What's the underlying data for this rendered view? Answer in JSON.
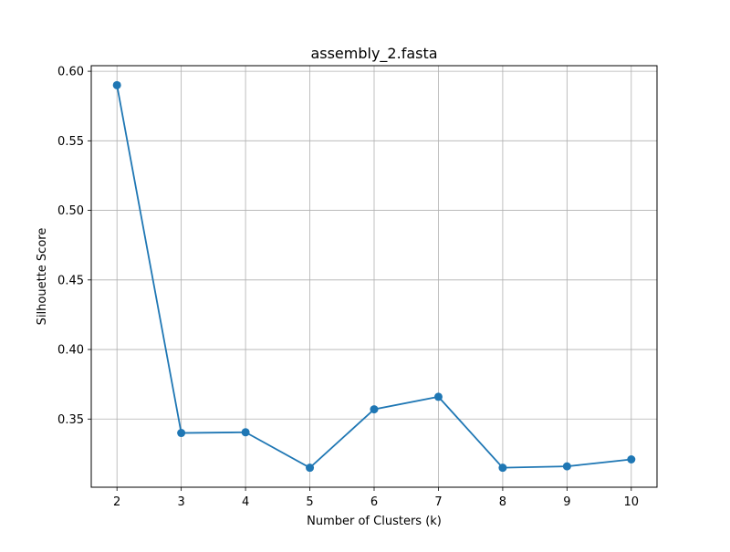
{
  "chart_data": {
    "type": "line",
    "title": "assembly_2.fasta",
    "xlabel": "Number of Clusters (k)",
    "ylabel": "Silhouette Score",
    "x": [
      2,
      3,
      4,
      5,
      6,
      7,
      8,
      9,
      10
    ],
    "xticks": [
      "2",
      "3",
      "4",
      "5",
      "6",
      "7",
      "8",
      "9",
      "10"
    ],
    "yticks": [
      "0.35",
      "0.40",
      "0.45",
      "0.50",
      "0.55",
      "0.60"
    ],
    "xlim": [
      1.6,
      10.4
    ],
    "ylim": [
      0.301,
      0.604
    ],
    "grid": true,
    "series": [
      {
        "color": "#1f77b4",
        "values": [
          0.59,
          0.34,
          0.3405,
          0.315,
          0.357,
          0.366,
          0.315,
          0.316,
          0.321
        ]
      }
    ]
  }
}
